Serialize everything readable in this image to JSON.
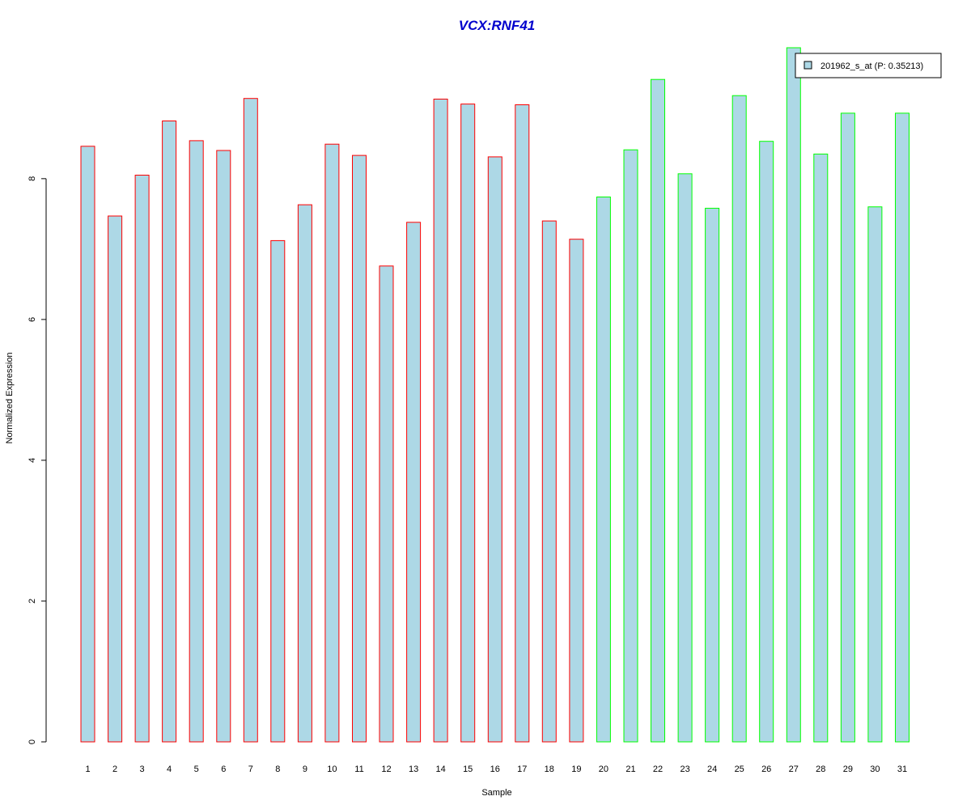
{
  "chart_data": {
    "type": "bar",
    "title": "VCX:RNF41",
    "xlabel": "Sample",
    "ylabel": "Normalized Expression",
    "categories": [
      "1",
      "2",
      "3",
      "4",
      "5",
      "6",
      "7",
      "8",
      "9",
      "10",
      "11",
      "12",
      "13",
      "14",
      "15",
      "16",
      "17",
      "18",
      "19",
      "20",
      "21",
      "22",
      "23",
      "24",
      "25",
      "26",
      "27",
      "28",
      "29",
      "30",
      "31"
    ],
    "values": [
      8.46,
      7.47,
      8.05,
      8.82,
      8.54,
      8.4,
      9.14,
      7.12,
      7.63,
      8.49,
      8.33,
      6.76,
      7.38,
      9.13,
      9.06,
      8.31,
      9.05,
      7.4,
      7.14,
      7.74,
      8.41,
      9.41,
      8.07,
      7.58,
      9.18,
      8.53,
      9.86,
      8.35,
      8.93,
      7.6,
      8.93
    ],
    "groups": [
      1,
      1,
      1,
      1,
      1,
      1,
      1,
      1,
      1,
      1,
      1,
      1,
      1,
      1,
      1,
      1,
      1,
      1,
      1,
      2,
      2,
      2,
      2,
      2,
      2,
      2,
      2,
      2,
      2,
      2,
      2
    ],
    "yticks": [
      0,
      2,
      4,
      6,
      8
    ],
    "ylim": [
      0,
      9.86
    ],
    "legend": {
      "label": "201962_s_at (P: 0.35213)",
      "position": "top-right"
    },
    "colors": {
      "fill": "#ADD8E6",
      "group1_border": "#FF0000",
      "group2_border": "#00FF00",
      "title": "#0000CD",
      "axis": "#000000"
    }
  }
}
